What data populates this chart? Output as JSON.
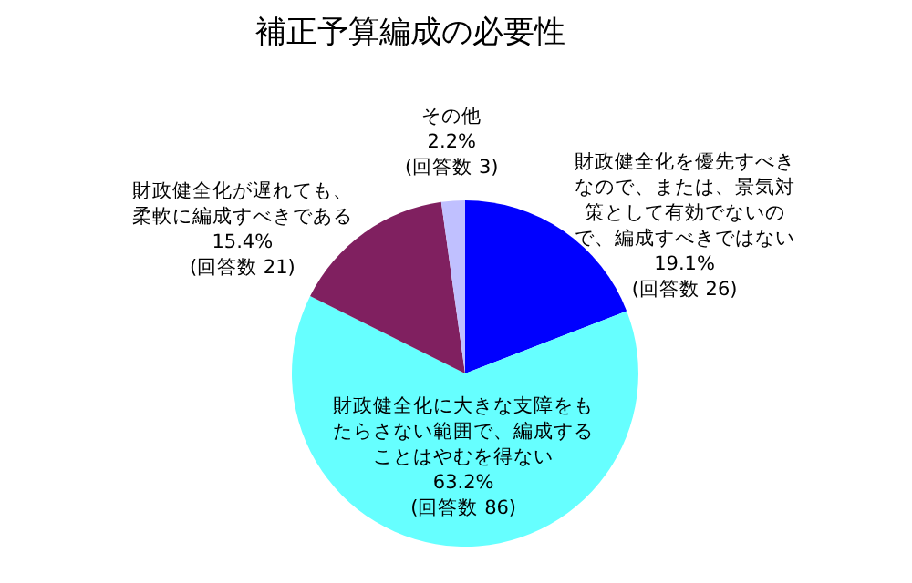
{
  "chart_data": {
    "type": "pie",
    "title": "補正予算編成の必要性",
    "categories": [
      "財政健全化を優先すべきなので、または、景気対策として有効でないので、編成すべきではない",
      "財政健全化に大きな支障をもたらさない範囲で、編成することはやむを得ない",
      "財政健全化が遅れても、柔軟に編成すべきである",
      "その他"
    ],
    "values": [
      19.1,
      63.2,
      15.4,
      2.2
    ],
    "value_labels": [
      "19.1%",
      "63.2%",
      "15.4%",
      "2.2%"
    ],
    "annotations": [
      "(回答数 26)",
      "(回答数 86)",
      "(回答数 21)",
      "(回答数 3)"
    ],
    "colors": [
      "#0000ff",
      "#66ffff",
      "#802060",
      "#c0c0ff"
    ]
  }
}
